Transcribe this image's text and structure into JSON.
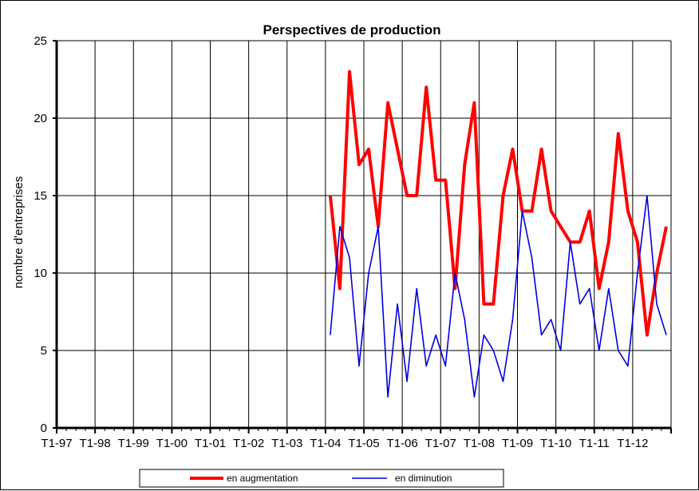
{
  "chart_data": {
    "type": "line",
    "title": "Perspectives  de production",
    "xlabel": "",
    "ylabel": "nombre d'entreprises",
    "ylim": [
      0,
      25
    ],
    "yticks": [
      0,
      5,
      10,
      15,
      20,
      25
    ],
    "grid": true,
    "legend_position": "bottom",
    "x_tick_labels": [
      "T1-97",
      "T1-98",
      "T1-99",
      "T1-00",
      "T1-01",
      "T1-02",
      "T1-03",
      "T1-04",
      "T1-05",
      "T1-06",
      "T1-07",
      "T1-08",
      "T1-09",
      "T1-10",
      "T1-11",
      "T1-12"
    ],
    "x_start_quarter": "T1-04",
    "series": [
      {
        "name": "en augmentation",
        "color": "#ff0000",
        "values": [
          15,
          9,
          23,
          17,
          18,
          13,
          21,
          18,
          15,
          15,
          22,
          16,
          16,
          9,
          17,
          21,
          8,
          8,
          15,
          18,
          14,
          14,
          18,
          14,
          13,
          12,
          12,
          14,
          9,
          12,
          19,
          14,
          12,
          6,
          10,
          13
        ]
      },
      {
        "name": "en diminution",
        "color": "#0000dd",
        "values": [
          6,
          13,
          11,
          4,
          10,
          13,
          2,
          8,
          3,
          9,
          4,
          6,
          4,
          10,
          7,
          2,
          6,
          5,
          3,
          7,
          14,
          11,
          6,
          7,
          5,
          12,
          8,
          9,
          5,
          9,
          5,
          4,
          10,
          15,
          8,
          6
        ]
      }
    ]
  }
}
